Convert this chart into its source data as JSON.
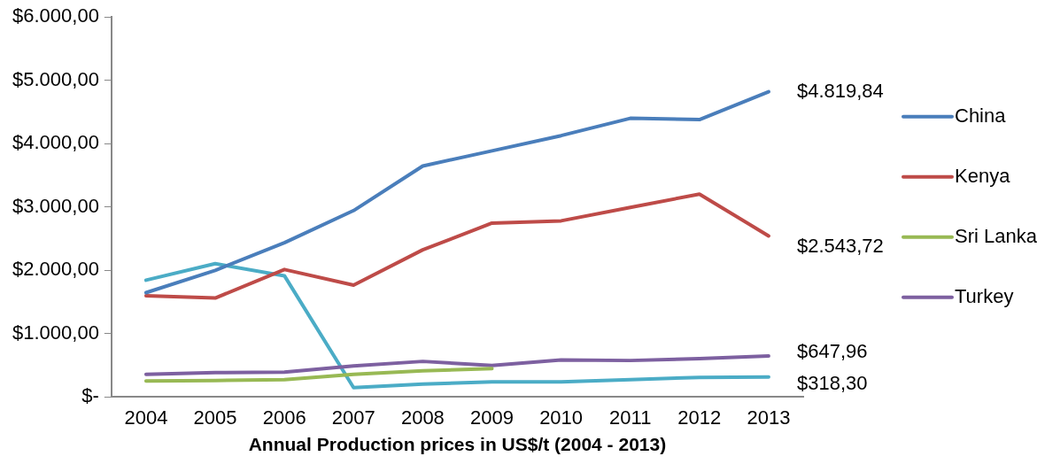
{
  "chart_data": {
    "type": "line",
    "xlabel": "Annual Production prices in US$/t (2004 - 2013)",
    "categories": [
      "2004",
      "2005",
      "2006",
      "2007",
      "2008",
      "2009",
      "2010",
      "2011",
      "2012",
      "2013"
    ],
    "series": [
      {
        "name": "China",
        "color": "#4a7ebb",
        "values": [
          1648,
          2000,
          2437,
          2944,
          3648,
          3887,
          4127,
          4401,
          4380,
          4819.84
        ],
        "value_labels": [
          null,
          null,
          null,
          null,
          null,
          null,
          null,
          null,
          null,
          "$4.819,84"
        ]
      },
      {
        "name": "Kenya",
        "color": "#be4b48",
        "values": [
          1599,
          1563,
          2014,
          1768,
          2324,
          2746,
          2782,
          2993,
          3204,
          2543.72
        ],
        "value_labels": [
          null,
          null,
          null,
          null,
          null,
          null,
          null,
          null,
          null,
          "$2.543,72"
        ]
      },
      {
        "name": "Sri Lanka",
        "color": "#98b954",
        "values": [
          254,
          261,
          275,
          359,
          415,
          451,
          null,
          null,
          null,
          null
        ]
      },
      {
        "name": "Turkey",
        "color": "#7d60a0",
        "values": [
          359,
          387,
          394,
          493,
          563,
          500,
          585,
          577,
          606,
          647.96
        ],
        "value_labels": [
          null,
          null,
          null,
          null,
          null,
          null,
          null,
          null,
          null,
          "$647,96"
        ]
      },
      {
        "color": "#4bacc6",
        "values": [
          1845,
          2106,
          1915,
          148,
          204,
          239,
          239,
          275,
          310,
          318.3
        ],
        "value_labels": [
          null,
          null,
          null,
          null,
          null,
          null,
          null,
          null,
          null,
          "$318,30"
        ]
      }
    ],
    "ylim": [
      0,
      6000
    ],
    "yticks": [
      {
        "value": 0,
        "label": "$-"
      },
      {
        "value": 1000,
        "label": "$1.000,00"
      },
      {
        "value": 2000,
        "label": "$2.000,00"
      },
      {
        "value": 3000,
        "label": "$3.000,00"
      },
      {
        "value": 4000,
        "label": "$4.000,00"
      },
      {
        "value": 5000,
        "label": "$5.000,00"
      },
      {
        "value": 6000,
        "label": "$6.000,00"
      }
    ],
    "grid": false,
    "legend": "right",
    "marker": "none",
    "line_style": "solid"
  }
}
